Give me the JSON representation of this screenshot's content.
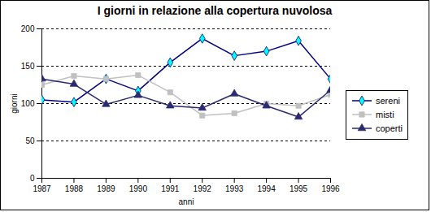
{
  "chart_data": {
    "type": "line",
    "title": "I giorni in relazione alla copertura nuvolosa",
    "x_label": "anni",
    "y_label": "giorni",
    "x": [
      1987,
      1988,
      1989,
      1990,
      1991,
      1992,
      1993,
      1994,
      1995,
      1996
    ],
    "xlim": [
      1987,
      1996
    ],
    "xticks": [
      1987,
      1988,
      1989,
      1990,
      1991,
      1992,
      1993,
      1994,
      1995,
      1996
    ],
    "ylim": [
      0,
      200
    ],
    "yticks": [
      0,
      50,
      100,
      150,
      200
    ],
    "grid": true,
    "legend": "right",
    "series": [
      {
        "name": "sereni",
        "color": "#000080",
        "marker": "diamond",
        "values": [
          105,
          102,
          133,
          117,
          155,
          187,
          164,
          170,
          184,
          133
        ]
      },
      {
        "name": "misti",
        "color": "#c0c0c0",
        "marker": "square",
        "values": [
          125,
          137,
          133,
          138,
          115,
          84,
          87,
          100,
          97,
          112
        ]
      },
      {
        "name": "coperti",
        "color": "#2a2a70",
        "marker": "triangle",
        "values": [
          133,
          126,
          99,
          111,
          97,
          94,
          113,
          97,
          82,
          118
        ]
      }
    ]
  }
}
